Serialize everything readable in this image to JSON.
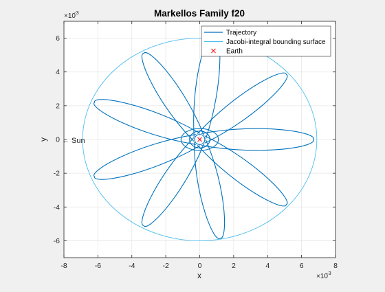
{
  "chart_data": {
    "type": "line",
    "title": "Markellos Family f20",
    "xlabel": "x",
    "ylabel": "y",
    "x_exponent_label": "×10",
    "x_exponent": "-3",
    "y_exponent_label": "×10",
    "y_exponent": "-3",
    "xlim": [
      -8,
      8
    ],
    "ylim": [
      -7,
      7
    ],
    "xticks": [
      -8,
      -6,
      -4,
      -2,
      0,
      2,
      4,
      6,
      8
    ],
    "yticks": [
      -6,
      -4,
      -2,
      0,
      2,
      4,
      6
    ],
    "grid": true,
    "legend_location": "top-right",
    "annotation": "← Sun",
    "series": [
      {
        "name": "Trajectory",
        "kind": "trajectory",
        "color": "#0072BD",
        "apex_points": [
          [
            6.7,
            0.0
          ],
          [
            5.1,
            3.85
          ],
          [
            0.85,
            6.35
          ],
          [
            -3.3,
            5.1
          ],
          [
            -6.2,
            2.2
          ],
          [
            -6.2,
            -2.2
          ],
          [
            -3.3,
            -5.1
          ],
          [
            1.2,
            -5.85
          ],
          [
            5.1,
            -3.85
          ]
        ],
        "inner_loop_radii": [
          [
            1.1,
            0.65
          ],
          [
            0.6,
            0.5
          ],
          [
            0.3,
            0.3
          ]
        ]
      },
      {
        "name": "Jacobi-integral bounding surface",
        "kind": "ellipse",
        "color": "#4DBEEE",
        "center": [
          0.0,
          0.0
        ],
        "semi_axes": [
          6.9,
          6.0
        ]
      },
      {
        "name": "Earth",
        "kind": "marker",
        "color": "#FF0000",
        "x": 0.0,
        "y": 0.0
      }
    ]
  }
}
